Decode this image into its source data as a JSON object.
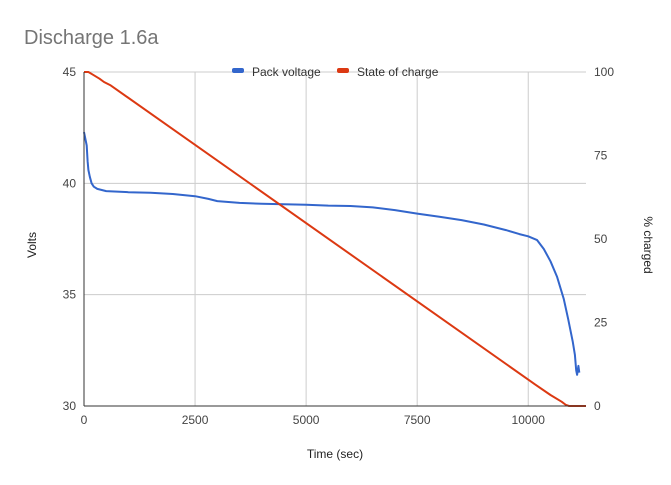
{
  "chart_data": {
    "type": "line",
    "title": "Discharge 1.6a",
    "xlabel": "Time (sec)",
    "ylabel_left": "Volts",
    "ylabel_right": "% charged",
    "xlim": [
      0,
      11300
    ],
    "ylim_left": [
      30,
      45
    ],
    "ylim_right": [
      0,
      100
    ],
    "x_ticks": [
      0,
      2500,
      5000,
      7500,
      10000
    ],
    "y_left_ticks": [
      30,
      35,
      40,
      45
    ],
    "y_right_ticks": [
      0,
      25,
      50,
      75,
      100
    ],
    "grid": true,
    "legend_position": "top",
    "series": [
      {
        "name": "Pack voltage",
        "axis": "left",
        "color": "#3366cc",
        "points": [
          [
            0,
            42.3
          ],
          [
            40,
            41.9
          ],
          [
            60,
            41.7
          ],
          [
            80,
            41.0
          ],
          [
            100,
            40.6
          ],
          [
            130,
            40.3
          ],
          [
            170,
            40.0
          ],
          [
            220,
            39.85
          ],
          [
            300,
            39.75
          ],
          [
            500,
            39.65
          ],
          [
            1000,
            39.6
          ],
          [
            1500,
            39.58
          ],
          [
            2000,
            39.52
          ],
          [
            2500,
            39.42
          ],
          [
            2800,
            39.3
          ],
          [
            3000,
            39.2
          ],
          [
            3500,
            39.12
          ],
          [
            4000,
            39.08
          ],
          [
            4500,
            39.06
          ],
          [
            5000,
            39.04
          ],
          [
            5500,
            39.0
          ],
          [
            6000,
            38.98
          ],
          [
            6500,
            38.92
          ],
          [
            7000,
            38.8
          ],
          [
            7500,
            38.64
          ],
          [
            8000,
            38.5
          ],
          [
            8500,
            38.35
          ],
          [
            9000,
            38.15
          ],
          [
            9500,
            37.9
          ],
          [
            9800,
            37.72
          ],
          [
            10000,
            37.62
          ],
          [
            10200,
            37.45
          ],
          [
            10350,
            37.05
          ],
          [
            10500,
            36.5
          ],
          [
            10650,
            35.8
          ],
          [
            10800,
            34.8
          ],
          [
            10900,
            33.9
          ],
          [
            11000,
            32.9
          ],
          [
            11050,
            32.3
          ],
          [
            11080,
            31.6
          ],
          [
            11100,
            31.4
          ],
          [
            11130,
            31.8
          ],
          [
            11150,
            31.5
          ]
        ]
      },
      {
        "name": "State of charge",
        "axis": "right",
        "color": "#dc3912",
        "points": [
          [
            0,
            100
          ],
          [
            100,
            100
          ],
          [
            200,
            99.2
          ],
          [
            350,
            98
          ],
          [
            450,
            97
          ],
          [
            600,
            96
          ],
          [
            10150,
            6.5
          ],
          [
            10500,
            3.3
          ],
          [
            10750,
            1.3
          ],
          [
            10850,
            0.3
          ],
          [
            10920,
            0
          ],
          [
            11300,
            0
          ]
        ]
      }
    ]
  }
}
